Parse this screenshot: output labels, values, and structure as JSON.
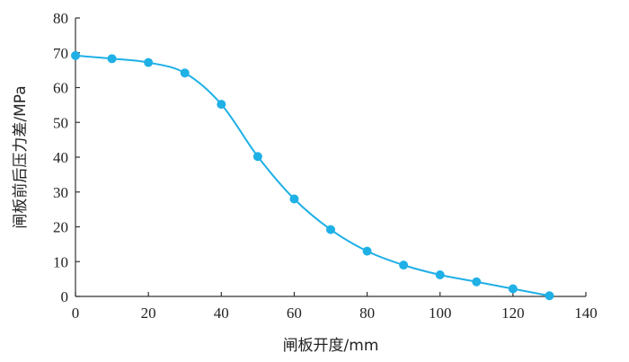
{
  "chart_data": {
    "type": "line",
    "title": "",
    "xlabel": "闸板开度/mm",
    "ylabel": "闸板前后压力差/MPa",
    "xlim": [
      0,
      140
    ],
    "ylim": [
      0,
      80
    ],
    "x_ticks": [
      0,
      20,
      40,
      60,
      80,
      100,
      120,
      140
    ],
    "y_ticks": [
      0,
      10,
      20,
      30,
      40,
      50,
      60,
      70,
      80
    ],
    "x_tick_labels": [
      "0",
      "20",
      "40",
      "60",
      "80",
      "100",
      "120",
      "140"
    ],
    "y_tick_labels": [
      "0",
      "10",
      "20",
      "30",
      "40",
      "50",
      "60",
      "70",
      "80"
    ],
    "grid": false,
    "legend": "none",
    "series": [
      {
        "color": "#1fb0e6",
        "x": [
          0,
          10,
          20,
          30,
          40,
          50,
          60,
          70,
          80,
          90,
          100,
          110,
          120,
          130
        ],
        "y": [
          69.2,
          68.3,
          67.2,
          64.2,
          55.2,
          40.2,
          28.0,
          19.2,
          13.0,
          9.0,
          6.2,
          4.2,
          2.2,
          0.2
        ]
      }
    ]
  }
}
